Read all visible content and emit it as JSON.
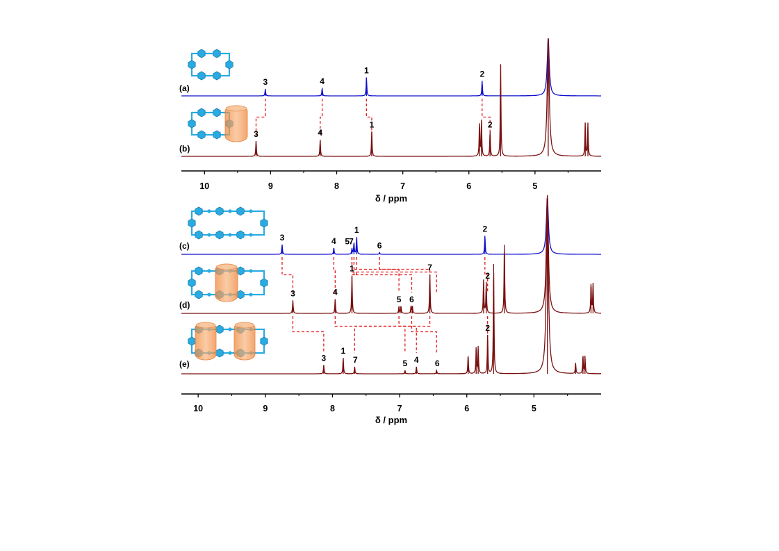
{
  "chart_data": [
    {
      "type": "line",
      "title": "",
      "xlabel": "δ / ppm",
      "ylabel": "",
      "xlim": [
        10.35,
        4.0
      ],
      "x_reversed": true,
      "xticks": [
        10,
        9,
        8,
        7,
        6,
        5
      ],
      "xtick_labels": [
        "10",
        "9",
        "8",
        "7",
        "6",
        "5"
      ],
      "grid": false,
      "spectra": [
        {
          "panel": "(a)",
          "color": "#1010cc",
          "peaks": [
            {
              "label": "3",
              "ppm": 9.08,
              "intensity": 0.12
            },
            {
              "label": "4",
              "ppm": 8.22,
              "intensity": 0.13
            },
            {
              "label": "1",
              "ppm": 7.55,
              "intensity": 0.32
            },
            {
              "label": "2",
              "ppm": 5.8,
              "intensity": 0.26
            },
            {
              "label": "",
              "ppm": 4.8,
              "intensity": 1.0
            }
          ],
          "labels": [
            {
              "text": "3",
              "ppm": 9.08
            },
            {
              "text": "4",
              "ppm": 8.22
            },
            {
              "text": "1",
              "ppm": 7.55
            },
            {
              "text": "2",
              "ppm": 5.8
            }
          ]
        },
        {
          "panel": "(b)",
          "color": "#7a1010",
          "peaks": [
            {
              "label": "3",
              "ppm": 9.22,
              "intensity": 0.13
            },
            {
              "label": "4",
              "ppm": 8.25,
              "intensity": 0.14
            },
            {
              "label": "1",
              "ppm": 7.47,
              "intensity": 0.21
            },
            {
              "label": "",
              "ppm": 5.84,
              "intensity": 0.28
            },
            {
              "label": "",
              "ppm": 5.81,
              "intensity": 0.3
            },
            {
              "label": "2",
              "ppm": 5.68,
              "intensity": 0.21
            },
            {
              "label": "",
              "ppm": 5.52,
              "intensity": 0.78
            },
            {
              "label": "",
              "ppm": 4.8,
              "intensity": 1.0
            },
            {
              "label": "",
              "ppm": 4.24,
              "intensity": 0.28
            },
            {
              "label": "",
              "ppm": 4.2,
              "intensity": 0.28
            }
          ],
          "labels": [
            {
              "text": "3",
              "ppm": 9.22
            },
            {
              "text": "4",
              "ppm": 8.25
            },
            {
              "text": "1",
              "ppm": 7.47
            },
            {
              "text": "2",
              "ppm": 5.68
            }
          ]
        }
      ],
      "correlations": [
        {
          "from_ppm": 9.08,
          "to_ppm": 9.22
        },
        {
          "from_ppm": 8.22,
          "to_ppm": 8.25
        },
        {
          "from_ppm": 7.55,
          "to_ppm": 7.47
        },
        {
          "from_ppm": 5.8,
          "to_ppm": 5.68
        }
      ]
    },
    {
      "type": "line",
      "title": "",
      "xlabel": "δ / ppm",
      "ylabel": "",
      "xlim": [
        10.25,
        4.0
      ],
      "x_reversed": true,
      "xticks": [
        10,
        9,
        8,
        7,
        6,
        5
      ],
      "xtick_labels": [
        "10",
        "9",
        "8",
        "7",
        "6",
        "5"
      ],
      "grid": false,
      "spectra": [
        {
          "panel": "(c)",
          "color": "#1010cc",
          "peaks": [
            {
              "label": "3",
              "ppm": 8.75,
              "intensity": 0.17
            },
            {
              "label": "4",
              "ppm": 7.98,
              "intensity": 0.11
            },
            {
              "label": "5",
              "ppm": 7.71,
              "intensity": 0.1
            },
            {
              "label": "7",
              "ppm": 7.68,
              "intensity": 0.2
            },
            {
              "label": "1",
              "ppm": 7.64,
              "intensity": 0.3
            },
            {
              "label": "6",
              "ppm": 7.3,
              "intensity": 0.03
            },
            {
              "label": "2",
              "ppm": 5.73,
              "intensity": 0.32
            },
            {
              "label": "",
              "ppm": 4.8,
              "intensity": 1.0
            }
          ],
          "labels": [
            {
              "text": "3",
              "ppm": 8.75
            },
            {
              "text": "4",
              "ppm": 7.98
            },
            {
              "text": "5",
              "ppm": 7.78
            },
            {
              "text": "7",
              "ppm": 7.72
            },
            {
              "text": "1",
              "ppm": 7.64
            },
            {
              "text": "6",
              "ppm": 7.3
            },
            {
              "text": "2",
              "ppm": 5.73
            }
          ]
        },
        {
          "panel": "(d)",
          "color": "#7a1010",
          "peaks": [
            {
              "label": "3",
              "ppm": 8.59,
              "intensity": 0.11
            },
            {
              "label": "4",
              "ppm": 7.96,
              "intensity": 0.12
            },
            {
              "label": "1",
              "ppm": 7.71,
              "intensity": 0.32
            },
            {
              "label": "5",
              "ppm": 7.01,
              "intensity": 0.06
            },
            {
              "label": "",
              "ppm": 6.98,
              "intensity": 0.06
            },
            {
              "label": "6",
              "ppm": 6.83,
              "intensity": 0.06
            },
            {
              "label": "",
              "ppm": 6.81,
              "intensity": 0.06
            },
            {
              "label": "7",
              "ppm": 6.55,
              "intensity": 0.33
            },
            {
              "label": "",
              "ppm": 5.75,
              "intensity": 0.28
            },
            {
              "label": "2",
              "ppm": 5.71,
              "intensity": 0.26
            },
            {
              "label": "",
              "ppm": 5.44,
              "intensity": 0.58
            },
            {
              "label": "",
              "ppm": 4.8,
              "intensity": 1.0
            },
            {
              "label": "",
              "ppm": 4.15,
              "intensity": 0.25
            },
            {
              "label": "",
              "ppm": 4.12,
              "intensity": 0.25
            }
          ],
          "labels": [
            {
              "text": "3",
              "ppm": 8.59
            },
            {
              "text": "4",
              "ppm": 7.96
            },
            {
              "text": "1",
              "ppm": 7.71
            },
            {
              "text": "5",
              "ppm": 7.01
            },
            {
              "text": "6",
              "ppm": 6.82
            },
            {
              "text": "7",
              "ppm": 6.55
            },
            {
              "text": "2",
              "ppm": 5.69
            }
          ]
        },
        {
          "panel": "(e)",
          "color": "#7a1010",
          "peaks": [
            {
              "label": "3",
              "ppm": 8.13,
              "intensity": 0.05
            },
            {
              "label": "1",
              "ppm": 7.84,
              "intensity": 0.09
            },
            {
              "label": "7",
              "ppm": 7.67,
              "intensity": 0.04
            },
            {
              "label": "5",
              "ppm": 6.92,
              "intensity": 0.02
            },
            {
              "label": "4",
              "ppm": 6.75,
              "intensity": 0.04
            },
            {
              "label": "6",
              "ppm": 6.45,
              "intensity": 0.02
            },
            {
              "label": "",
              "ppm": 5.98,
              "intensity": 0.1
            },
            {
              "label": "",
              "ppm": 5.86,
              "intensity": 0.15
            },
            {
              "label": "",
              "ppm": 5.83,
              "intensity": 0.15
            },
            {
              "label": "2",
              "ppm": 5.69,
              "intensity": 0.22
            },
            {
              "label": "",
              "ppm": 5.6,
              "intensity": 0.62
            },
            {
              "label": "",
              "ppm": 4.8,
              "intensity": 1.0
            },
            {
              "label": "",
              "ppm": 4.38,
              "intensity": 0.06
            },
            {
              "label": "",
              "ppm": 4.27,
              "intensity": 0.1
            },
            {
              "label": "",
              "ppm": 4.24,
              "intensity": 0.1
            }
          ],
          "labels": [
            {
              "text": "3",
              "ppm": 8.13
            },
            {
              "text": "1",
              "ppm": 7.84
            },
            {
              "text": "7",
              "ppm": 7.66
            },
            {
              "text": "5",
              "ppm": 6.92
            },
            {
              "text": "4",
              "ppm": 6.75
            },
            {
              "text": "6",
              "ppm": 6.44
            },
            {
              "text": "2",
              "ppm": 5.69
            }
          ]
        }
      ],
      "correlations": [
        {
          "from_ppm": 8.75,
          "to_ppm": 8.59
        },
        {
          "from_ppm": 8.59,
          "to_ppm": 8.13
        },
        {
          "from_ppm": 7.98,
          "to_ppm": 7.96
        },
        {
          "from_ppm": 7.96,
          "to_ppm": 6.92
        },
        {
          "from_ppm": 7.64,
          "to_ppm": 7.71
        },
        {
          "from_ppm": 7.71,
          "to_ppm": 6.45
        },
        {
          "from_ppm": 7.71,
          "to_ppm": 7.01
        },
        {
          "from_ppm": 7.01,
          "to_ppm": 6.75
        },
        {
          "from_ppm": 7.68,
          "to_ppm": 6.82
        },
        {
          "from_ppm": 6.82,
          "to_ppm": 6.45
        },
        {
          "from_ppm": 7.3,
          "to_ppm": 6.55
        },
        {
          "from_ppm": 6.55,
          "to_ppm": 7.67
        },
        {
          "from_ppm": 5.73,
          "to_ppm": 5.69
        },
        {
          "from_ppm": 5.69,
          "to_ppm": 5.69
        }
      ]
    }
  ],
  "schematics": {
    "ring_color": "#29abe2",
    "cage_color": "#f5a060",
    "cage_edge": "#e07830",
    "items": [
      {
        "panel": "(a)",
        "icon": "macrocycle-small-icon",
        "cages": 0
      },
      {
        "panel": "(b)",
        "icon": "macrocycle-small-one-cage-icon",
        "cages": 1
      },
      {
        "panel": "(c)",
        "icon": "macrocycle-large-icon",
        "cages": 0
      },
      {
        "panel": "(d)",
        "icon": "macrocycle-large-one-cage-icon",
        "cages": 1
      },
      {
        "panel": "(e)",
        "icon": "macrocycle-large-two-cage-icon",
        "cages": 2
      }
    ]
  },
  "colors": {
    "host_spectrum": "#1010cc",
    "complex_spectrum": "#7a1010",
    "correlation_line": "#e31a1c",
    "axis": "#000000"
  }
}
